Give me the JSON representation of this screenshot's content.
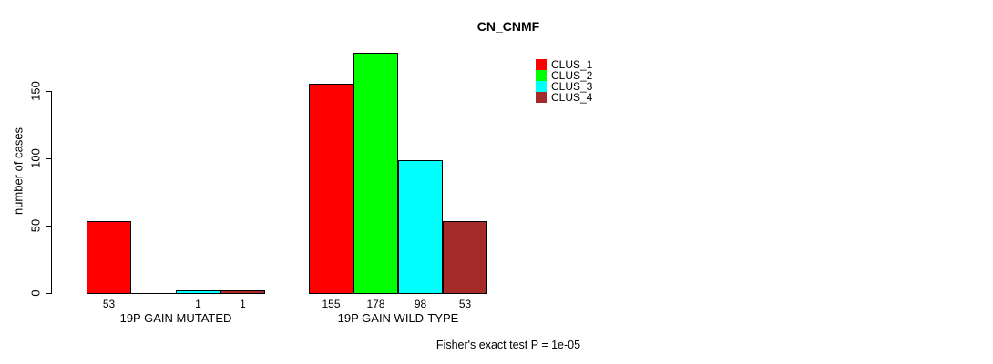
{
  "title": "CN_CNMF",
  "y_axis": {
    "label": "number of cases",
    "ticks": [
      "0",
      "50",
      "100",
      "150"
    ]
  },
  "footer": "Fisher's exact test P = 1e-05",
  "legend": {
    "items": [
      {
        "label": "CLUS_1",
        "color": "#FF0000"
      },
      {
        "label": "CLUS_2",
        "color": "#00FF00"
      },
      {
        "label": "CLUS_3",
        "color": "#00FFFF"
      },
      {
        "label": "CLUS_4",
        "color": "#A52A2A"
      }
    ]
  },
  "chart_data": {
    "type": "bar",
    "title": "CN_CNMF",
    "xlabel": "",
    "ylabel": "number of cases",
    "ylim": [
      0,
      185
    ],
    "yticks": [
      0,
      50,
      100,
      150
    ],
    "grid": false,
    "legend_position": "top-right",
    "categories": [
      "19P GAIN MUTATED",
      "19P GAIN WILD-TYPE"
    ],
    "series": [
      {
        "name": "CLUS_1",
        "color": "#FF0000",
        "values": [
          53,
          155
        ]
      },
      {
        "name": "CLUS_2",
        "color": "#00FF00",
        "values": [
          0,
          178
        ]
      },
      {
        "name": "CLUS_3",
        "color": "#00FFFF",
        "values": [
          1,
          98
        ]
      },
      {
        "name": "CLUS_4",
        "color": "#A52A2A",
        "values": [
          1,
          53
        ]
      }
    ],
    "bar_value_labels": [
      [
        "53",
        "",
        "1",
        "1"
      ],
      [
        "155",
        "178",
        "98",
        "53"
      ]
    ],
    "annotation": "Fisher's exact test P = 1e-05"
  }
}
